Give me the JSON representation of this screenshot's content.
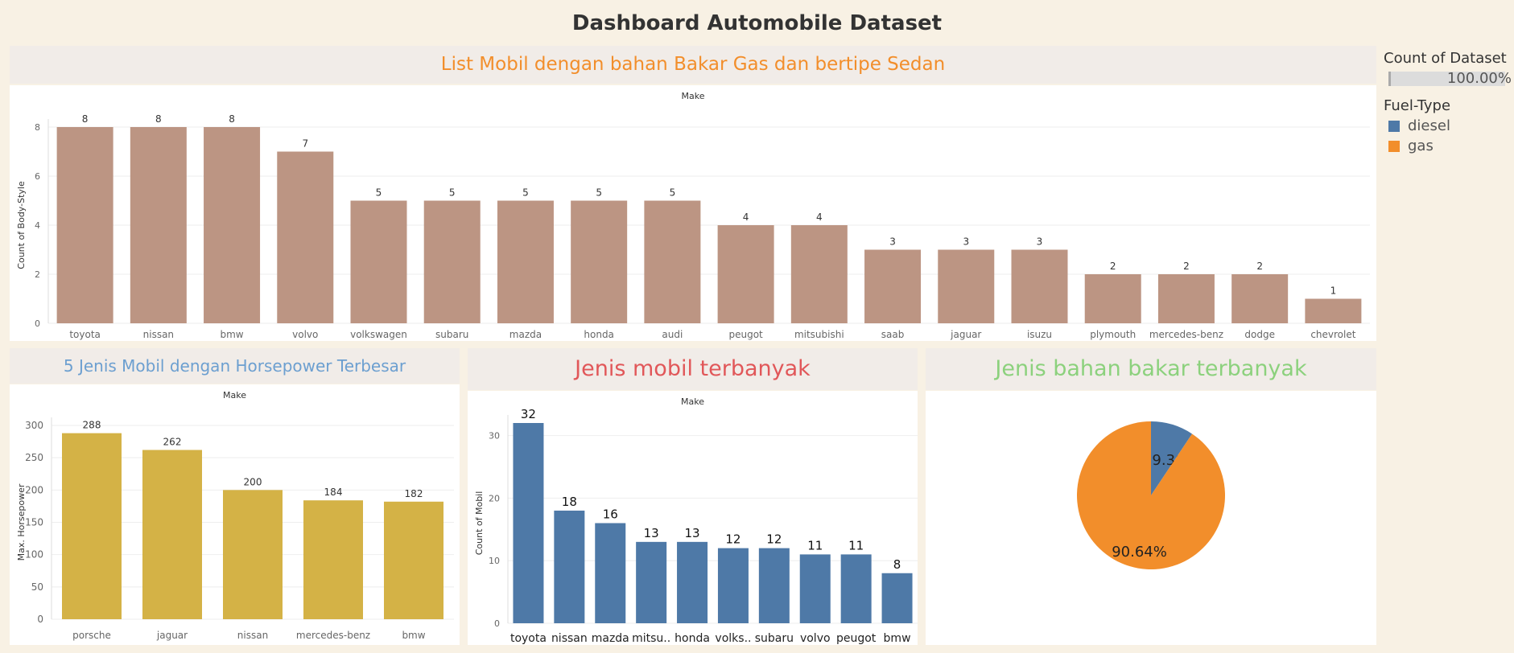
{
  "dashboard": {
    "title": "Dashboard Automobile Dataset"
  },
  "panels": {
    "sedan": "List Mobil dengan bahan Bakar Gas dan bertipe Sedan",
    "hp": "5 Jenis Mobil dengan Horsepower Terbesar",
    "most": "Jenis mobil terbanyak",
    "fuel": "Jenis bahan bakar terbanyak"
  },
  "legend": {
    "count_title": "Count of Dataset",
    "count_value": "100.00%",
    "fuel_title": "Fuel-Type",
    "items": [
      {
        "label": "diesel",
        "color": "#4e79a7"
      },
      {
        "label": "gas",
        "color": "#f28e2b"
      }
    ]
  },
  "chart_data": [
    {
      "id": "sedan",
      "type": "bar",
      "title": "List Mobil dengan bahan Bakar Gas dan bertipe Sedan",
      "top_label": "Make",
      "ylabel": "Count of Body-Style",
      "ylim": [
        0,
        8
      ],
      "yticks": [
        0,
        2,
        4,
        6,
        8
      ],
      "color": "#bc9583",
      "categories": [
        "toyota",
        "nissan",
        "bmw",
        "volvo",
        "volkswagen",
        "subaru",
        "mazda",
        "honda",
        "audi",
        "peugot",
        "mitsubishi",
        "saab",
        "jaguar",
        "isuzu",
        "plymouth",
        "mercedes-benz",
        "dodge",
        "chevrolet"
      ],
      "values": [
        8,
        8,
        8,
        7,
        5,
        5,
        5,
        5,
        5,
        4,
        4,
        3,
        3,
        3,
        2,
        2,
        2,
        1
      ],
      "grid": true
    },
    {
      "id": "hp",
      "type": "bar",
      "title": "5 Jenis Mobil dengan Horsepower Terbesar",
      "top_label": "Make",
      "ylabel": "Max. Horsepower",
      "ylim": [
        0,
        300
      ],
      "yticks": [
        0,
        50,
        100,
        150,
        200,
        250,
        300
      ],
      "color": "#d4b246",
      "categories": [
        "porsche",
        "jaguar",
        "nissan",
        "mercedes-benz",
        "bmw"
      ],
      "values": [
        288,
        262,
        200,
        184,
        182
      ],
      "grid": true
    },
    {
      "id": "most",
      "type": "bar",
      "title": "Jenis mobil terbanyak",
      "top_label": "Make",
      "ylabel": "Count of Mobil",
      "ylim": [
        0,
        32
      ],
      "yticks": [
        0,
        10,
        20,
        30
      ],
      "color": "#4e79a7",
      "categories": [
        "toyota",
        "nissan",
        "mazda",
        "mitsu..",
        "honda",
        "volks..",
        "subaru",
        "volvo",
        "peugot",
        "bmw"
      ],
      "values": [
        32,
        18,
        16,
        13,
        13,
        12,
        12,
        11,
        11,
        8
      ],
      "grid": true
    },
    {
      "id": "fuel",
      "type": "pie",
      "title": "Jenis bahan bakar terbanyak",
      "slices": [
        {
          "name": "diesel",
          "value": 9.36,
          "label": "9.36%",
          "color": "#4e79a7"
        },
        {
          "name": "gas",
          "value": 90.64,
          "label": "90.64%",
          "color": "#f28e2b"
        }
      ]
    }
  ]
}
